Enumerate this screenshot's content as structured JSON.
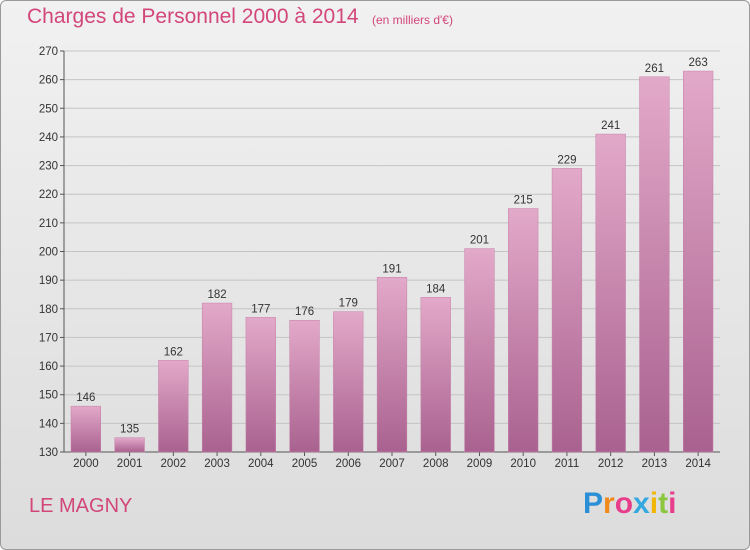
{
  "header": {
    "title": "Charges de Personnel 2000 à 2014",
    "subtitle": "(en milliers d'€)"
  },
  "footer": {
    "city": "LE MAGNY",
    "logo_letters": [
      "P",
      "r",
      "o",
      "x",
      "i",
      "t",
      "i"
    ],
    "logo_colors": [
      "#2a8fd6",
      "#f08a1c",
      "#e83d8b",
      "#35a8e0",
      "#f2b705",
      "#8cc63f",
      "#e83d8b"
    ]
  },
  "colors": {
    "accent": "#d2467a",
    "bar_top": "#e3a9c9",
    "bar_bottom": "#a9628f"
  },
  "chart_data": {
    "type": "bar",
    "title": "Charges de Personnel 2000 à 2014",
    "subtitle": "(en milliers d'€)",
    "xlabel": "",
    "ylabel": "",
    "categories": [
      "2000",
      "2001",
      "2002",
      "2003",
      "2004",
      "2005",
      "2006",
      "2007",
      "2008",
      "2009",
      "2010",
      "2011",
      "2012",
      "2013",
      "2014"
    ],
    "values": [
      146,
      135,
      162,
      182,
      177,
      176,
      179,
      191,
      184,
      201,
      215,
      229,
      241,
      261,
      263
    ],
    "ylim": [
      130,
      270
    ],
    "yticks": [
      130,
      140,
      150,
      160,
      170,
      180,
      190,
      200,
      210,
      220,
      230,
      240,
      250,
      260,
      270
    ],
    "grid": true,
    "data_labels": true
  }
}
